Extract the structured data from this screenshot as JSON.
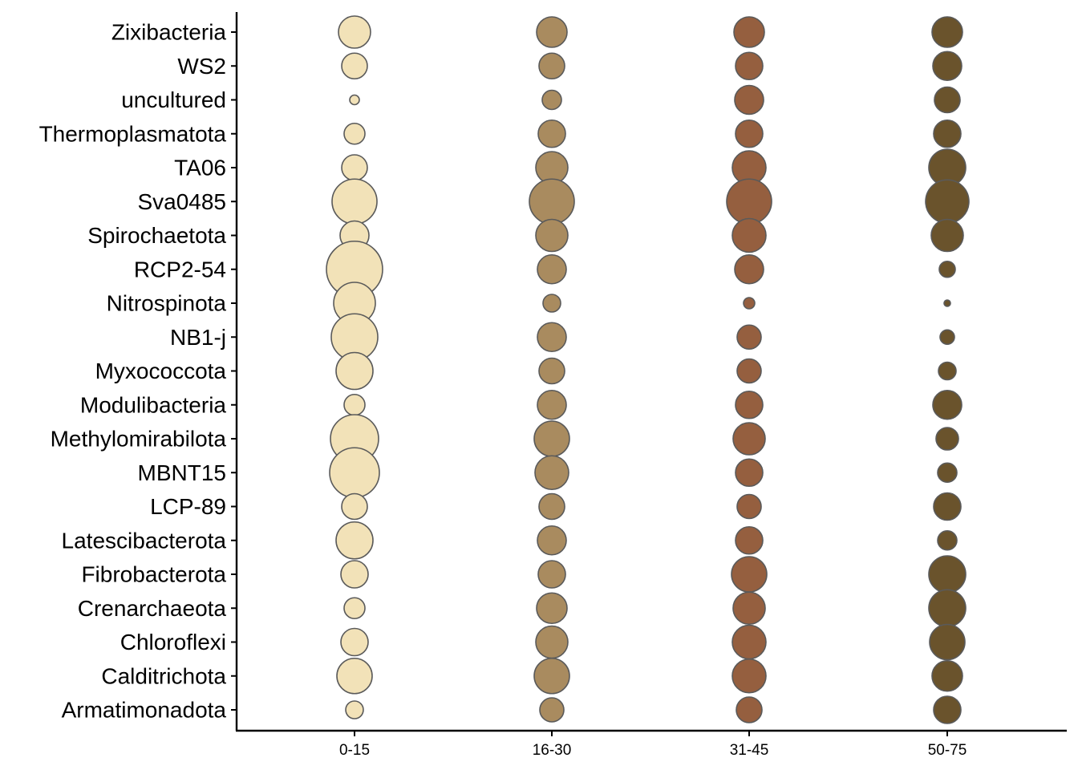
{
  "chart_data": {
    "type": "scatter",
    "title": "",
    "xlabel": "",
    "ylabel": "",
    "x_categories": [
      "0-15",
      "16-30",
      "31-45",
      "50-75"
    ],
    "y_categories": [
      "Zixibacteria",
      "WS2",
      "uncultured",
      "Thermoplasmatota",
      "TA06",
      "Sva0485",
      "Spirochaetota",
      "RCP2-54",
      "Nitrospinota",
      "NB1-j",
      "Myxococcota",
      "Modulibacteria",
      "Methylomirabilota",
      "MBNT15",
      "LCP-89",
      "Latescibacterota",
      "Fibrobacterota",
      "Crenarchaeota",
      "Chloroflexi",
      "Calditrichota",
      "Armatimonadota"
    ],
    "series_colors": [
      "#f2e2b8",
      "#a98b5f",
      "#955f3f",
      "#6a532c"
    ],
    "grid": false,
    "legend": "none",
    "relative_size": [
      [
        20,
        19,
        19,
        19
      ],
      [
        16,
        16,
        17,
        18
      ],
      [
        6,
        12,
        18,
        16
      ],
      [
        13,
        17,
        17,
        17
      ],
      [
        16,
        20,
        21,
        23
      ],
      [
        28,
        28,
        28,
        27
      ],
      [
        18,
        20,
        21,
        20
      ],
      [
        35,
        18,
        18,
        10
      ],
      [
        26,
        11,
        7,
        4
      ],
      [
        29,
        18,
        15,
        9
      ],
      [
        23,
        16,
        15,
        11
      ],
      [
        13,
        18,
        17,
        18
      ],
      [
        30,
        22,
        20,
        14
      ],
      [
        31,
        21,
        17,
        12
      ],
      [
        16,
        16,
        15,
        17
      ],
      [
        23,
        18,
        17,
        12
      ],
      [
        17,
        17,
        22,
        23
      ],
      [
        13,
        19,
        20,
        23
      ],
      [
        17,
        20,
        21,
        22
      ],
      [
        22,
        22,
        21,
        19
      ],
      [
        11,
        15,
        16,
        17
      ]
    ]
  }
}
